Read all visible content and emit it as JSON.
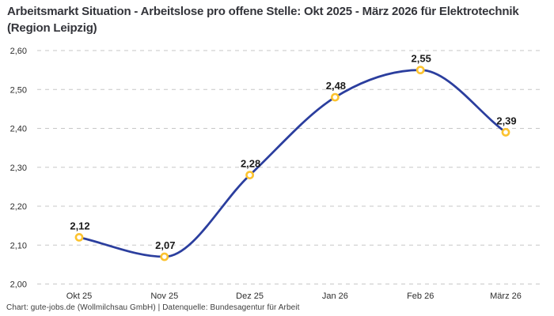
{
  "title": "Arbeitsmarkt Situation - Arbeitslose pro offene Stelle: Okt 2025 - März 2026 für Elektrotechnik (Region Leipzig)",
  "footer": "Chart: gute-jobs.de (Wollmilchsau GmbH) | Datenquelle: Bundesagentur für Arbeit",
  "colors": {
    "line": "#2B3E9E",
    "marker_ring": "#FCC32F",
    "marker_fill": "#FFFFFF",
    "gridline": "#C7C7C7",
    "title_text": "#33343A",
    "axis_text": "#2E2E2E",
    "label_text": "#1B1B1B",
    "background": "#FFFFFF"
  },
  "chart_data": {
    "type": "line",
    "title": "Arbeitsmarkt Situation - Arbeitslose pro offene Stelle: Okt 2025 - März 2026 für Elektrotechnik (Region Leipzig)",
    "categories": [
      "Okt 25",
      "Nov 25",
      "Dez 25",
      "Jan 26",
      "Feb 26",
      "März 26"
    ],
    "series": [
      {
        "name": "Arbeitslose pro offene Stelle",
        "values": [
          2.12,
          2.07,
          2.28,
          2.48,
          2.55,
          2.39
        ],
        "point_labels": [
          "2,12",
          "2,07",
          "2,28",
          "2,48",
          "2,55",
          "2,39"
        ]
      }
    ],
    "xlabel": "",
    "ylabel": "",
    "ylim": [
      2.0,
      2.6
    ],
    "y_ticks": [
      2.0,
      2.1,
      2.2,
      2.3,
      2.4,
      2.5,
      2.6
    ],
    "y_tick_labels": [
      "2,00",
      "2,10",
      "2,20",
      "2,30",
      "2,40",
      "2,50",
      "2,60"
    ],
    "grid": "horizontal dashed",
    "legend": "none",
    "line_style": "smooth monotone curve",
    "marker": "open circle"
  }
}
